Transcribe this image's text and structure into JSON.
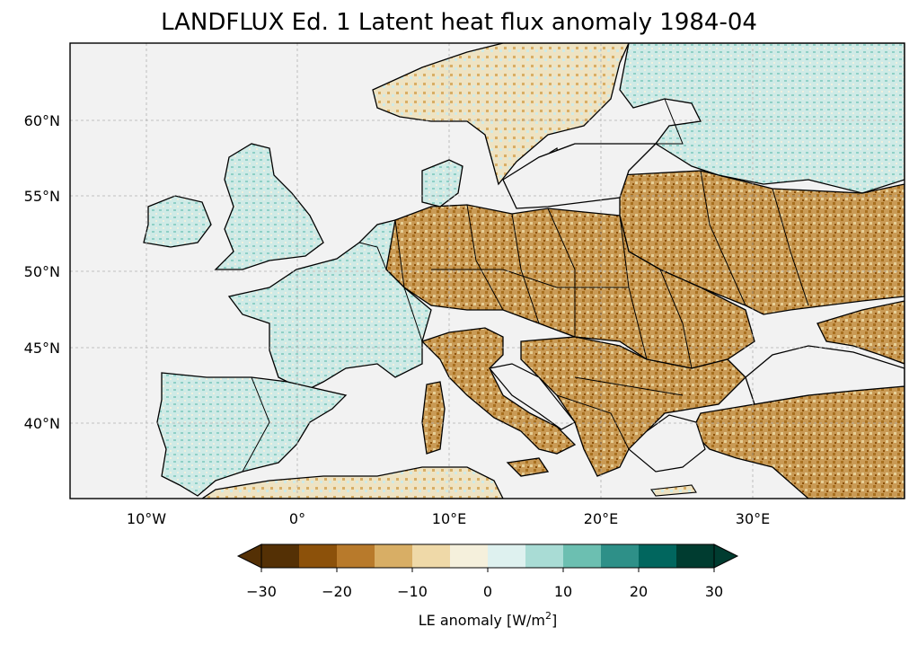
{
  "title": "LANDFLUX Ed. 1 Latent heat flux anomaly 1984-04",
  "map": {
    "lat_ticks": [
      "60°N",
      "55°N",
      "50°N",
      "45°N",
      "40°N"
    ],
    "lon_ticks": [
      "10°W",
      "0°",
      "10°E",
      "20°E",
      "30°E"
    ],
    "background": "#f2f2f2",
    "region": "Europe"
  },
  "colorbar": {
    "label_prefix": "LE anomaly [W/m",
    "label_sup": "2",
    "label_suffix": "]",
    "ticks": [
      "−30",
      "−20",
      "−10",
      "0",
      "10",
      "20",
      "30"
    ],
    "colors": [
      "#543005",
      "#8c510a",
      "#b87a2b",
      "#d8ae65",
      "#efd9a8",
      "#f5f0dc",
      "#def1ef",
      "#a9dcd5",
      "#6cbfb1",
      "#2e9088",
      "#01665e",
      "#003c30"
    ],
    "under_color": "#543005",
    "over_color": "#003c30"
  }
}
